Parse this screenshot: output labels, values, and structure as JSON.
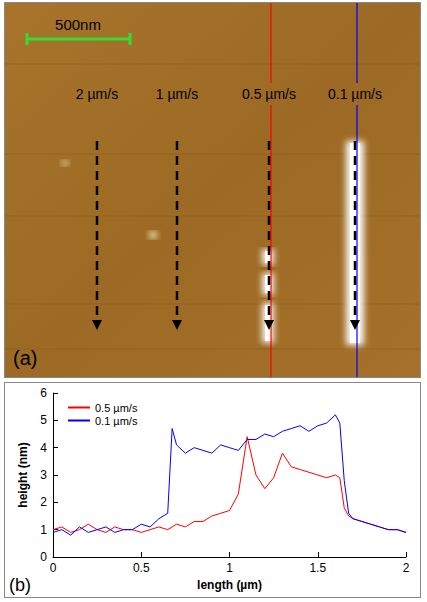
{
  "panel_a": {
    "scale_bar": "500nm",
    "speed_labels": [
      "2 µm/s",
      "1 µm/s",
      "0.5 µm/s",
      "0.1 µm/s"
    ],
    "label": "(a)"
  },
  "chart_data": {
    "type": "line",
    "x": [
      0,
      0.05,
      0.1,
      0.15,
      0.2,
      0.25,
      0.3,
      0.35,
      0.4,
      0.45,
      0.5,
      0.55,
      0.6,
      0.65,
      0.675,
      0.7,
      0.75,
      0.8,
      0.85,
      0.9,
      0.95,
      1.0,
      1.05,
      1.1,
      1.15,
      1.2,
      1.25,
      1.3,
      1.35,
      1.4,
      1.45,
      1.5,
      1.55,
      1.6,
      1.625,
      1.65,
      1.675,
      1.7,
      1.75,
      1.8,
      1.85,
      1.9,
      1.95,
      2.0
    ],
    "series": [
      {
        "name": "0.5 µm/s",
        "color": "#ff0000",
        "values": [
          1.0,
          1.1,
          0.9,
          1.0,
          1.2,
          1.0,
          0.9,
          1.1,
          1.0,
          1.0,
          0.9,
          1.0,
          1.1,
          1.0,
          1.1,
          1.2,
          1.1,
          1.3,
          1.3,
          1.5,
          1.6,
          1.7,
          2.3,
          4.4,
          3.0,
          2.5,
          2.9,
          3.8,
          3.3,
          3.2,
          3.1,
          3.0,
          2.9,
          3.0,
          2.9,
          1.8,
          1.5,
          1.4,
          1.3,
          1.2,
          1.1,
          1.0,
          1.0,
          0.9
        ]
      },
      {
        "name": "0.1 µm/s",
        "color": "#0000ff",
        "values": [
          0.9,
          1.0,
          0.8,
          1.1,
          0.9,
          1.0,
          1.1,
          0.9,
          1.0,
          1.0,
          1.2,
          1.1,
          1.4,
          1.6,
          4.7,
          4.1,
          3.8,
          4.0,
          3.9,
          3.8,
          4.1,
          4.0,
          3.9,
          4.3,
          4.3,
          4.5,
          4.4,
          4.6,
          4.7,
          4.8,
          4.6,
          4.8,
          4.9,
          5.2,
          4.9,
          2.8,
          1.6,
          1.4,
          1.3,
          1.2,
          1.1,
          1.0,
          1.0,
          0.9
        ]
      }
    ],
    "xlim": [
      0,
      2
    ],
    "xticks": [
      0,
      0.5,
      1,
      1.5,
      2
    ],
    "ylim": [
      0,
      6
    ],
    "yticks": [
      0,
      1,
      2,
      3,
      4,
      5,
      6
    ],
    "x_label": "length (µm)",
    "y_label": "height (nm)",
    "legend": "top-left",
    "grid": false,
    "annotations": [
      "(b)"
    ]
  }
}
